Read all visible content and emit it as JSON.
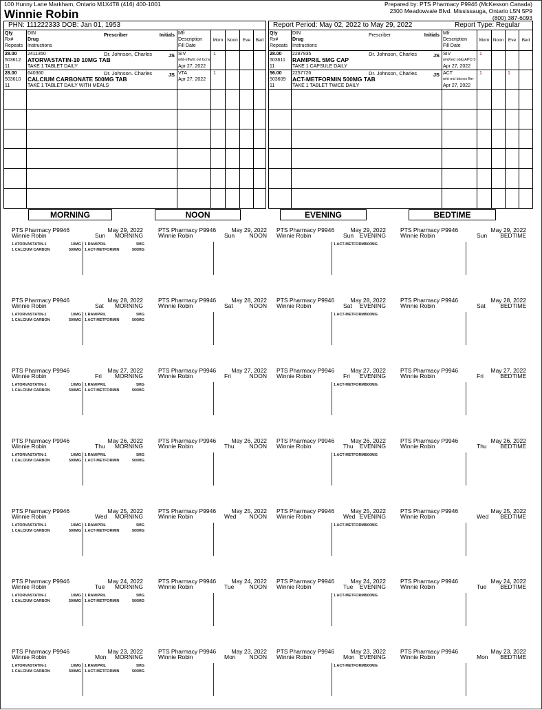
{
  "patient": {
    "address": "100 Hunny Lane  Markham, Ontario  M1X4T8  (416) 400-1001",
    "name": "Winnie Robin",
    "phn_dob": "PHN: 111222333  DOB: Jan 01, 1953"
  },
  "pharmacy": {
    "prepared_by": "Prepared by: PTS Pharmacy P9946 (McKesson Canada)",
    "address": "2300 Meadowvale Blvd.  Mississauga, Ontario  L5N 5P9",
    "phone": "(800) 387-6093",
    "card_name": "PTS Pharmacy P9946"
  },
  "report": {
    "period": "Report Period: May 02, 2022 to May 29, 2022",
    "type": "Report Type: Regular"
  },
  "columns": {
    "qty": "Qty",
    "rx": "Rx#",
    "repeats": "Repeats",
    "din": "DIN",
    "drug": "Drug",
    "instructions": "Instructions",
    "prescriber": "Prescriber",
    "initials": "Initials",
    "mfr": "Mfr",
    "description": "Description",
    "fill_date": "Fill Date",
    "morn": "Morn",
    "noon": "Noon",
    "eve": "Eve",
    "bed": "Bed"
  },
  "left_meds": [
    {
      "qty": "28.00",
      "rx": "503612",
      "repeats": "11",
      "din": "2411350",
      "drug": "ATORVASTATIN-10 10MG TAB",
      "instructions": "TAKE 1 TABLET DAILY",
      "prescriber": "Dr. Johnson, Charles",
      "initials": "JS",
      "mfr": "SIV",
      "description": "wht-offwht ovl bcnv",
      "fill_date": "Apr 27, 2022",
      "morn": "1",
      "noon": "",
      "eve": "",
      "bed": ""
    },
    {
      "qty": "28.00",
      "rx": "503610",
      "repeats": "11",
      "din": "640360",
      "drug": "CALCIUM CARBONATE 500MG TAB",
      "instructions": "TAKE 1 TABLET DAILY WITH MEALS",
      "prescriber": "Dr. Johnson. Charles",
      "initials": "JS",
      "mfr": "VTA",
      "description": "",
      "fill_date": "Apr 27, 2022",
      "morn": "1",
      "noon": "",
      "eve": "",
      "bed": ""
    }
  ],
  "right_meds": [
    {
      "qty": "28.00",
      "rx": "503611",
      "repeats": "11",
      "din": "2287935",
      "drug": "RAMIPRIL 5MG CAP",
      "instructions": "TAKE 1 CAPSULE DAILY",
      "prescriber": "Dr. Johnson, Charles",
      "initials": "JS",
      "mfr": "SIV",
      "description": "wht/red oblg APO 5",
      "fill_date": "Apr 27, 2022",
      "morn": "1",
      "noon": "",
      "eve": "",
      "bed": ""
    },
    {
      "qty": "56.00",
      "rx": "503609",
      "repeats": "11",
      "din": "2257726",
      "drug": "ACT-METFORMIN 500MG TAB",
      "instructions": "TAKE 1 TABLET TWICE DAILY",
      "prescriber": "Dr. Johnson, Charles",
      "initials": "JS",
      "mfr": "ACT",
      "description": "wht rnd bicnvx flm-",
      "fill_date": "Apr 27, 2022",
      "morn": "1",
      "noon": "",
      "eve": "1",
      "bed": ""
    }
  ],
  "slots": [
    {
      "label": "MORNING",
      "card_label": "MORNING",
      "left_items": [
        {
          "name": "1 ATORVASTATIN-1",
          "strength": "10MG"
        },
        {
          "name": "1 CALCIUM CARBON",
          "strength": "500MG"
        }
      ],
      "right_items": [
        {
          "name": "1 RAMIPRIL",
          "strength": "5MG"
        },
        {
          "name": "1 ACT-METFORMIN",
          "strength": "500MG"
        }
      ]
    },
    {
      "label": "NOON",
      "card_label": "NOON",
      "left_items": [],
      "right_items": []
    },
    {
      "label": "EVENING",
      "card_label": "EVENING",
      "left_items": [],
      "right_items": [
        {
          "name": "1 ACT-METFORMI",
          "strength": "500MG"
        }
      ]
    },
    {
      "label": "BEDTIME",
      "card_label": "BEDTIME",
      "left_items": [],
      "right_items": []
    }
  ],
  "days": [
    {
      "date": "May 29, 2022",
      "day": "Sun"
    },
    {
      "date": "May 28, 2022",
      "day": "Sat"
    },
    {
      "date": "May 27, 2022",
      "day": "Fri"
    },
    {
      "date": "May 26, 2022",
      "day": "Thu"
    },
    {
      "date": "May 25, 2022",
      "day": "Wed"
    },
    {
      "date": "May 24, 2022",
      "day": "Tue"
    },
    {
      "date": "May 23, 2022",
      "day": "Mon"
    }
  ],
  "colors": {
    "left_dose": "#1a2a5a",
    "right_dose": "#7a1a1a"
  }
}
